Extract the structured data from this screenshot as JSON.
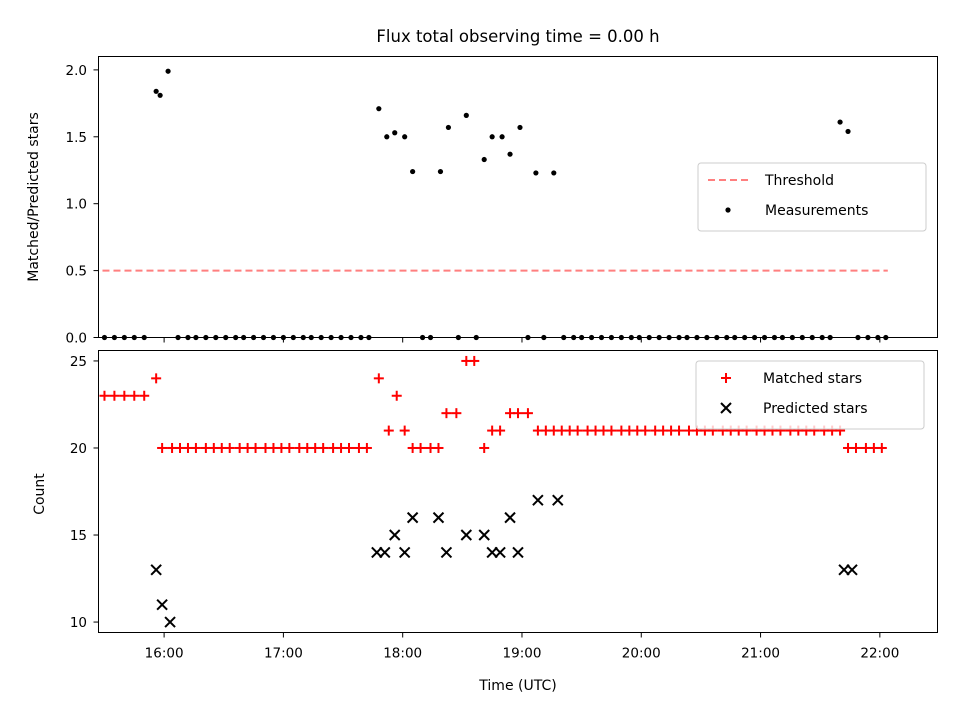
{
  "chart_data": [
    {
      "type": "scatter",
      "title": "Flux total observing time = 0.00 h",
      "xlabel": "",
      "ylabel": "Matched/Predicted stars",
      "ylim": [
        0,
        2.1
      ],
      "xlim": [
        "15:27",
        "22:29"
      ],
      "yticks": [
        "0.0",
        "0.5",
        "1.0",
        "1.5",
        "2.0"
      ],
      "xticks": [
        "16:00",
        "17:00",
        "18:00",
        "19:00",
        "20:00",
        "21:00",
        "22:00"
      ],
      "show_xticklabels": false,
      "legend": {
        "placement": "center-right",
        "entries": [
          "Threshold",
          "Measurements"
        ]
      },
      "threshold": {
        "name": "Threshold",
        "value": 0.5,
        "x_start": "15:29",
        "x_end": "22:04",
        "color": "#ff7f7f",
        "style": "dashed"
      },
      "series": [
        {
          "name": "Measurements",
          "color": "#000000",
          "marker": "dot",
          "points": [
            [
              "15:30",
              0
            ],
            [
              "15:35",
              0
            ],
            [
              "15:40",
              0
            ],
            [
              "15:45",
              0
            ],
            [
              "15:50",
              0
            ],
            [
              "15:56",
              1.84
            ],
            [
              "15:58",
              1.81
            ],
            [
              "16:02",
              1.99
            ],
            [
              "16:07",
              0
            ],
            [
              "16:12",
              0
            ],
            [
              "16:16",
              0
            ],
            [
              "16:21",
              0
            ],
            [
              "16:26",
              0
            ],
            [
              "16:31",
              0
            ],
            [
              "16:36",
              0
            ],
            [
              "16:40",
              0
            ],
            [
              "16:45",
              0
            ],
            [
              "16:50",
              0
            ],
            [
              "16:55",
              0
            ],
            [
              "17:00",
              0
            ],
            [
              "17:05",
              0
            ],
            [
              "17:10",
              0
            ],
            [
              "17:14",
              0
            ],
            [
              "17:19",
              0
            ],
            [
              "17:24",
              0
            ],
            [
              "17:29",
              0
            ],
            [
              "17:34",
              0
            ],
            [
              "17:39",
              0
            ],
            [
              "17:43",
              0
            ],
            [
              "17:48",
              1.71
            ],
            [
              "17:52",
              1.5
            ],
            [
              "17:56",
              1.53
            ],
            [
              "18:01",
              1.5
            ],
            [
              "18:05",
              1.24
            ],
            [
              "18:10",
              0
            ],
            [
              "18:14",
              0
            ],
            [
              "18:19",
              1.24
            ],
            [
              "18:23",
              1.57
            ],
            [
              "18:28",
              0
            ],
            [
              "18:32",
              1.66
            ],
            [
              "18:37",
              0
            ],
            [
              "18:41",
              1.33
            ],
            [
              "18:45",
              1.5
            ],
            [
              "18:50",
              1.5
            ],
            [
              "18:54",
              1.37
            ],
            [
              "18:59",
              1.57
            ],
            [
              "19:03",
              0
            ],
            [
              "19:07",
              1.23
            ],
            [
              "19:11",
              0
            ],
            [
              "19:16",
              1.23
            ],
            [
              "19:21",
              0
            ],
            [
              "19:26",
              0
            ],
            [
              "19:30",
              0
            ],
            [
              "19:35",
              0
            ],
            [
              "19:40",
              0
            ],
            [
              "19:45",
              0
            ],
            [
              "19:50",
              0
            ],
            [
              "19:55",
              0
            ],
            [
              "19:59",
              0
            ],
            [
              "20:04",
              0
            ],
            [
              "20:09",
              0
            ],
            [
              "20:14",
              0
            ],
            [
              "20:19",
              0
            ],
            [
              "20:23",
              0
            ],
            [
              "20:28",
              0
            ],
            [
              "20:33",
              0
            ],
            [
              "20:38",
              0
            ],
            [
              "20:43",
              0
            ],
            [
              "20:47",
              0
            ],
            [
              "20:52",
              0
            ],
            [
              "20:57",
              0
            ],
            [
              "21:02",
              0
            ],
            [
              "21:07",
              0
            ],
            [
              "21:11",
              0
            ],
            [
              "21:16",
              0
            ],
            [
              "21:21",
              0
            ],
            [
              "21:26",
              0
            ],
            [
              "21:31",
              0
            ],
            [
              "21:35",
              0
            ],
            [
              "21:40",
              1.61
            ],
            [
              "21:44",
              1.54
            ],
            [
              "21:49",
              0
            ],
            [
              "21:54",
              0
            ],
            [
              "21:59",
              0
            ],
            [
              "22:03",
              0
            ]
          ]
        }
      ]
    },
    {
      "type": "scatter",
      "title": "",
      "xlabel": "Time (UTC)",
      "ylabel": "Count",
      "ylim": [
        9.4,
        25.6
      ],
      "xlim": [
        "15:27",
        "22:29"
      ],
      "yticks": [
        "10",
        "15",
        "20",
        "25"
      ],
      "xticks": [
        "16:00",
        "17:00",
        "18:00",
        "19:00",
        "20:00",
        "21:00",
        "22:00"
      ],
      "show_xticklabels": true,
      "legend": {
        "placement": "top-right",
        "entries": [
          "Matched stars",
          "Predicted stars"
        ]
      },
      "series": [
        {
          "name": "Matched stars",
          "color": "#ff0000",
          "marker": "plus",
          "points": [
            [
              "15:30",
              23
            ],
            [
              "15:35",
              23
            ],
            [
              "15:40",
              23
            ],
            [
              "15:45",
              23
            ],
            [
              "15:50",
              23
            ],
            [
              "15:56",
              24
            ],
            [
              "15:59",
              20
            ],
            [
              "16:04",
              20
            ],
            [
              "16:08",
              20
            ],
            [
              "16:12",
              20
            ],
            [
              "16:16",
              20
            ],
            [
              "16:21",
              20
            ],
            [
              "16:25",
              20
            ],
            [
              "16:29",
              20
            ],
            [
              "16:33",
              20
            ],
            [
              "16:38",
              20
            ],
            [
              "16:42",
              20
            ],
            [
              "16:46",
              20
            ],
            [
              "16:51",
              20
            ],
            [
              "16:55",
              20
            ],
            [
              "16:59",
              20
            ],
            [
              "17:03",
              20
            ],
            [
              "17:08",
              20
            ],
            [
              "17:12",
              20
            ],
            [
              "17:16",
              20
            ],
            [
              "17:20",
              20
            ],
            [
              "17:25",
              20
            ],
            [
              "17:29",
              20
            ],
            [
              "17:33",
              20
            ],
            [
              "17:38",
              20
            ],
            [
              "17:42",
              20
            ],
            [
              "17:48",
              24
            ],
            [
              "17:53",
              21
            ],
            [
              "17:57",
              23
            ],
            [
              "18:01",
              21
            ],
            [
              "18:05",
              20
            ],
            [
              "18:09",
              20
            ],
            [
              "18:14",
              20
            ],
            [
              "18:18",
              20
            ],
            [
              "18:22",
              22
            ],
            [
              "18:27",
              22
            ],
            [
              "18:32",
              25
            ],
            [
              "18:36",
              25
            ],
            [
              "18:41",
              20
            ],
            [
              "18:45",
              21
            ],
            [
              "18:49",
              21
            ],
            [
              "18:54",
              22
            ],
            [
              "18:58",
              22
            ],
            [
              "19:03",
              22
            ],
            [
              "19:08",
              21
            ],
            [
              "19:12",
              21
            ],
            [
              "19:16",
              21
            ],
            [
              "19:20",
              21
            ],
            [
              "19:24",
              21
            ],
            [
              "19:28",
              21
            ],
            [
              "19:33",
              21
            ],
            [
              "19:37",
              21
            ],
            [
              "19:41",
              21
            ],
            [
              "19:45",
              21
            ],
            [
              "19:50",
              21
            ],
            [
              "19:54",
              21
            ],
            [
              "19:58",
              21
            ],
            [
              "20:02",
              21
            ],
            [
              "20:07",
              21
            ],
            [
              "20:11",
              21
            ],
            [
              "20:15",
              21
            ],
            [
              "20:19",
              21
            ],
            [
              "20:24",
              21
            ],
            [
              "20:28",
              21
            ],
            [
              "20:32",
              21
            ],
            [
              "20:36",
              21
            ],
            [
              "20:41",
              21
            ],
            [
              "20:45",
              21
            ],
            [
              "20:49",
              21
            ],
            [
              "20:53",
              21
            ],
            [
              "20:58",
              21
            ],
            [
              "21:02",
              21
            ],
            [
              "21:06",
              21
            ],
            [
              "21:10",
              21
            ],
            [
              "21:15",
              21
            ],
            [
              "21:19",
              21
            ],
            [
              "21:23",
              21
            ],
            [
              "21:27",
              21
            ],
            [
              "21:32",
              21
            ],
            [
              "21:36",
              21
            ],
            [
              "21:40",
              21
            ],
            [
              "21:44",
              20
            ],
            [
              "21:48",
              20
            ],
            [
              "21:53",
              20
            ],
            [
              "21:57",
              20
            ],
            [
              "22:01",
              20
            ]
          ]
        },
        {
          "name": "Predicted stars",
          "color": "#000000",
          "marker": "x",
          "points": [
            [
              "15:56",
              13
            ],
            [
              "15:59",
              11
            ],
            [
              "16:03",
              10
            ],
            [
              "17:47",
              14
            ],
            [
              "17:51",
              14
            ],
            [
              "17:56",
              15
            ],
            [
              "18:01",
              14
            ],
            [
              "18:05",
              16
            ],
            [
              "18:18",
              16
            ],
            [
              "18:22",
              14
            ],
            [
              "18:32",
              15
            ],
            [
              "18:41",
              15
            ],
            [
              "18:45",
              14
            ],
            [
              "18:49",
              14
            ],
            [
              "18:54",
              16
            ],
            [
              "18:58",
              14
            ],
            [
              "19:08",
              17
            ],
            [
              "19:18",
              17
            ],
            [
              "21:42",
              13
            ],
            [
              "21:46",
              13
            ]
          ]
        }
      ]
    }
  ]
}
